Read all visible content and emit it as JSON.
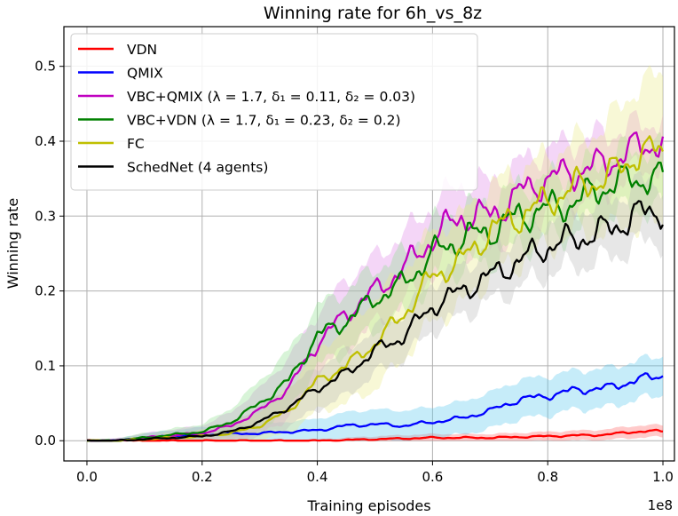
{
  "chart_data": {
    "type": "line",
    "title": "Winning rate for 6h_vs_8z",
    "xlabel": "Training episodes",
    "ylabel": "Winning rate",
    "x_offset_label": "1e8",
    "xlim": [
      -0.04,
      1.02
    ],
    "ylim": [
      -0.027,
      0.553
    ],
    "xticks": [
      0.0,
      0.2,
      0.4,
      0.6,
      0.8,
      1.0
    ],
    "xtick_labels": [
      "0.0",
      "0.2",
      "0.4",
      "0.6",
      "0.8",
      "1.0"
    ],
    "yticks": [
      0.0,
      0.1,
      0.2,
      0.3,
      0.4,
      0.5
    ],
    "ytick_labels": [
      "0.0",
      "0.1",
      "0.2",
      "0.3",
      "0.4",
      "0.5"
    ],
    "grid": true,
    "legend_position": "top-left",
    "series": [
      {
        "name": "VDN",
        "color": "#ff0000",
        "band_color": "#ff6666",
        "x": [
          0.0,
          0.3,
          0.4,
          0.5,
          0.6,
          0.7,
          0.8,
          0.9,
          0.95,
          1.0
        ],
        "values": [
          0.0,
          0.0,
          0.0,
          0.002,
          0.004,
          0.004,
          0.006,
          0.008,
          0.012,
          0.013
        ],
        "band": [
          0.0,
          0.0,
          0.002,
          0.004,
          0.005,
          0.005,
          0.006,
          0.007,
          0.008,
          0.008
        ]
      },
      {
        "name": "QMIX",
        "color": "#0000ff",
        "band_color": "#5bc8ef",
        "x": [
          0.0,
          0.05,
          0.1,
          0.15,
          0.2,
          0.3,
          0.4,
          0.45,
          0.5,
          0.55,
          0.6,
          0.65,
          0.7,
          0.75,
          0.8,
          0.85,
          0.9,
          0.95,
          1.0
        ],
        "values": [
          0.0,
          0.0,
          0.004,
          0.006,
          0.008,
          0.01,
          0.014,
          0.02,
          0.022,
          0.02,
          0.025,
          0.03,
          0.04,
          0.055,
          0.06,
          0.068,
          0.07,
          0.08,
          0.088
        ],
        "band": [
          0.0,
          0.002,
          0.006,
          0.008,
          0.01,
          0.012,
          0.015,
          0.018,
          0.02,
          0.02,
          0.02,
          0.022,
          0.024,
          0.026,
          0.026,
          0.026,
          0.026,
          0.026,
          0.026
        ]
      },
      {
        "name": "VBC+QMIX (λ = 1.7, δ₁ = 0.11, δ₂ = 0.03)",
        "color": "#c000c0",
        "band_color": "#e08ae8",
        "x": [
          0.0,
          0.05,
          0.1,
          0.15,
          0.2,
          0.25,
          0.3,
          0.35,
          0.4,
          0.45,
          0.5,
          0.55,
          0.6,
          0.65,
          0.7,
          0.75,
          0.8,
          0.85,
          0.9,
          0.95,
          1.0
        ],
        "values": [
          0.0,
          0.0,
          0.004,
          0.007,
          0.01,
          0.02,
          0.04,
          0.07,
          0.13,
          0.17,
          0.2,
          0.23,
          0.27,
          0.3,
          0.3,
          0.33,
          0.35,
          0.36,
          0.37,
          0.39,
          0.4
        ],
        "band": [
          0.0,
          0.003,
          0.006,
          0.008,
          0.01,
          0.018,
          0.03,
          0.04,
          0.04,
          0.045,
          0.045,
          0.045,
          0.045,
          0.045,
          0.045,
          0.04,
          0.04,
          0.04,
          0.04,
          0.03,
          0.03
        ]
      },
      {
        "name": "VBC+VDN (λ = 1.7, δ₁ = 0.23, δ₂ = 0.2)",
        "color": "#008000",
        "band_color": "#8fe08f",
        "x": [
          0.0,
          0.05,
          0.1,
          0.15,
          0.2,
          0.25,
          0.3,
          0.35,
          0.4,
          0.45,
          0.5,
          0.55,
          0.6,
          0.65,
          0.7,
          0.75,
          0.8,
          0.85,
          0.9,
          0.95,
          1.0
        ],
        "values": [
          0.0,
          0.0,
          0.004,
          0.008,
          0.012,
          0.025,
          0.05,
          0.08,
          0.14,
          0.16,
          0.19,
          0.21,
          0.25,
          0.27,
          0.28,
          0.3,
          0.31,
          0.32,
          0.34,
          0.35,
          0.35
        ],
        "band": [
          0.0,
          0.003,
          0.006,
          0.008,
          0.01,
          0.018,
          0.03,
          0.04,
          0.04,
          0.04,
          0.04,
          0.04,
          0.04,
          0.04,
          0.04,
          0.04,
          0.04,
          0.04,
          0.04,
          0.04,
          0.04
        ]
      },
      {
        "name": "FC",
        "color": "#bfbf00",
        "band_color": "#ecec8a",
        "x": [
          0.0,
          0.05,
          0.1,
          0.15,
          0.2,
          0.25,
          0.3,
          0.35,
          0.4,
          0.45,
          0.5,
          0.55,
          0.6,
          0.65,
          0.7,
          0.75,
          0.8,
          0.85,
          0.9,
          0.95,
          1.0
        ],
        "values": [
          0.0,
          0.0,
          0.002,
          0.004,
          0.006,
          0.01,
          0.02,
          0.04,
          0.08,
          0.1,
          0.13,
          0.17,
          0.22,
          0.24,
          0.28,
          0.3,
          0.32,
          0.34,
          0.35,
          0.38,
          0.39
        ],
        "band": [
          0.0,
          0.002,
          0.004,
          0.006,
          0.008,
          0.012,
          0.02,
          0.03,
          0.04,
          0.05,
          0.06,
          0.06,
          0.06,
          0.06,
          0.06,
          0.06,
          0.06,
          0.06,
          0.07,
          0.09,
          0.1
        ]
      },
      {
        "name": "SchedNet (4 agents)",
        "color": "#000000",
        "band_color": "#bbbbbb",
        "x": [
          0.0,
          0.05,
          0.1,
          0.15,
          0.2,
          0.25,
          0.3,
          0.35,
          0.4,
          0.45,
          0.5,
          0.55,
          0.6,
          0.65,
          0.7,
          0.75,
          0.8,
          0.85,
          0.9,
          0.95,
          1.0
        ],
        "values": [
          0.0,
          0.0,
          0.002,
          0.004,
          0.006,
          0.012,
          0.025,
          0.045,
          0.07,
          0.09,
          0.12,
          0.14,
          0.18,
          0.2,
          0.22,
          0.24,
          0.26,
          0.27,
          0.28,
          0.3,
          0.31
        ],
        "band": [
          0.0,
          0.002,
          0.004,
          0.006,
          0.008,
          0.012,
          0.02,
          0.025,
          0.028,
          0.03,
          0.03,
          0.03,
          0.032,
          0.033,
          0.034,
          0.035,
          0.036,
          0.037,
          0.038,
          0.04,
          0.04
        ]
      }
    ]
  }
}
